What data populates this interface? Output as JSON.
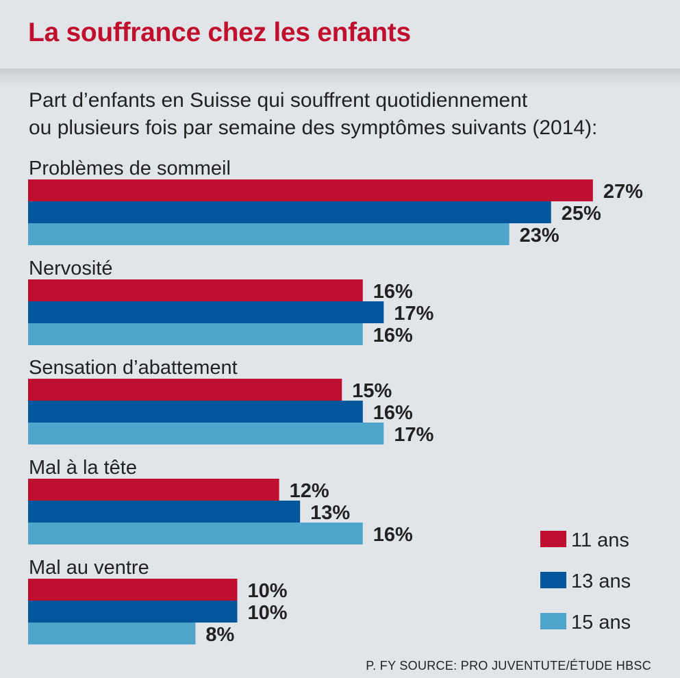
{
  "title": "La souffrance chez les enfants",
  "subtitle_line1": "Part d’enfants en Suisse qui souffrent quotidiennement",
  "subtitle_line2": "ou plusieurs fois par semaine des symptômes suivants (2014):",
  "source": "P. FY SOURCE: PRO JUVENTUTE/ÉTUDE HBSC",
  "chart_data": {
    "type": "bar",
    "orientation": "horizontal",
    "title": "La souffrance chez les enfants",
    "categories": [
      "Problèmes de sommeil",
      "Nervosité",
      "Sensation d’abattement",
      "Mal à la tête",
      "Mal au ventre"
    ],
    "series": [
      {
        "name": "11 ans",
        "color": "#be0f2f",
        "values": [
          27,
          16,
          15,
          12,
          10
        ],
        "labels": [
          "27%",
          "16%",
          "15%",
          "12%",
          "10%"
        ]
      },
      {
        "name": "13 ans",
        "color": "#02579c",
        "values": [
          25,
          17,
          16,
          13,
          10
        ],
        "labels": [
          "25%",
          "17%",
          "16%",
          "13%",
          "10%"
        ]
      },
      {
        "name": "15 ans",
        "color": "#4ea6cb",
        "values": [
          23,
          16,
          17,
          16,
          8
        ],
        "labels": [
          "23%",
          "16%",
          "17%",
          "16%",
          "8%"
        ]
      }
    ],
    "unit": "%",
    "legend_position": "bottom-right",
    "grid": false
  }
}
